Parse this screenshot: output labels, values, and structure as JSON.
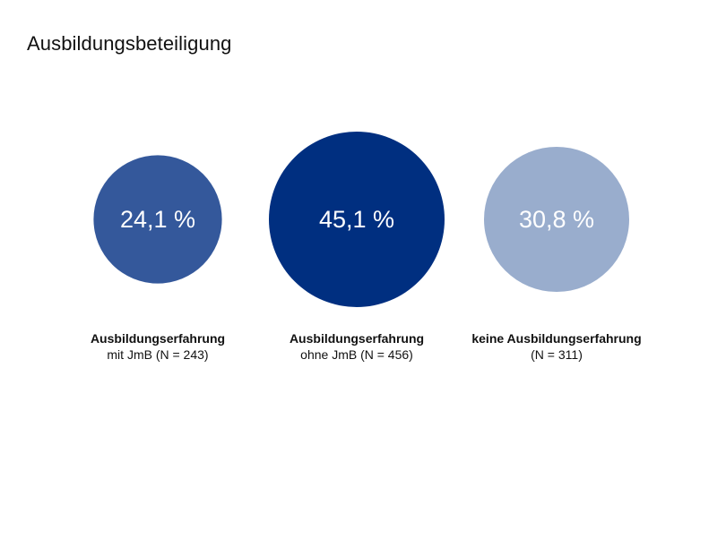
{
  "chart_data": {
    "type": "bubble",
    "title": "Ausbildungsbeteiligung",
    "unit": "%",
    "series": [
      {
        "label_line1": "Ausbildungserfahrung",
        "label_line2": "mit JmB (N = 243)",
        "value": 24.1,
        "value_label": "24,1 %",
        "color": "#34589b"
      },
      {
        "label_line1": "Ausbildungserfahrung",
        "label_line2": "ohne JmB (N = 456)",
        "value": 45.1,
        "value_label": "45,1 %",
        "color": "#002f80"
      },
      {
        "label_line1": "keine Ausbildungserfahrung",
        "label_line2": "(N = 311)",
        "value": 30.8,
        "value_label": "30,8 %",
        "color": "#99adcd"
      }
    ]
  }
}
